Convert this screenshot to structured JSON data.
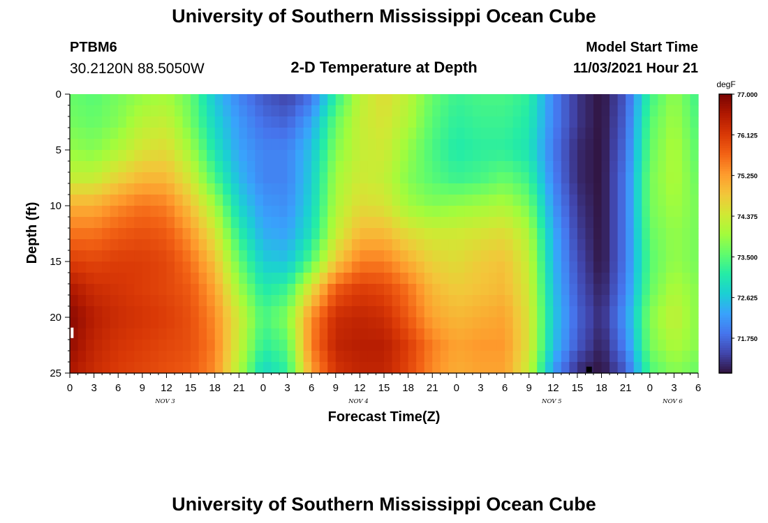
{
  "header": {
    "title": "University of Southern Mississippi Ocean Cube",
    "station_id": "PTBM6",
    "coordinates": "30.2120N  88.5050W",
    "chart_title": "2-D Temperature at Depth",
    "model_start_label": "Model Start Time",
    "model_start_value": "11/03/2021 Hour 21"
  },
  "footer": {
    "title": "University of Southern Mississippi Ocean Cube"
  },
  "colors": {
    "background": "#ffffff",
    "axis": "#000000"
  },
  "chart_data": {
    "type": "heatmap",
    "title": "2-D Temperature at Depth",
    "xlabel": "Forecast Time(Z)",
    "ylabel": "Depth (ft)",
    "x_units": "forecast hours from 00Z Nov 3",
    "xlim": [
      0,
      78
    ],
    "ylim": [
      0,
      25
    ],
    "y_inverted": true,
    "x_ticks": [
      {
        "hour": 0,
        "label": "0"
      },
      {
        "hour": 3,
        "label": "3"
      },
      {
        "hour": 6,
        "label": "6"
      },
      {
        "hour": 9,
        "label": "9"
      },
      {
        "hour": 12,
        "label": "12"
      },
      {
        "hour": 15,
        "label": "15"
      },
      {
        "hour": 18,
        "label": "18"
      },
      {
        "hour": 21,
        "label": "21"
      },
      {
        "hour": 24,
        "label": "0"
      },
      {
        "hour": 27,
        "label": "3"
      },
      {
        "hour": 30,
        "label": "6"
      },
      {
        "hour": 33,
        "label": "9"
      },
      {
        "hour": 36,
        "label": "12"
      },
      {
        "hour": 39,
        "label": "15"
      },
      {
        "hour": 42,
        "label": "18"
      },
      {
        "hour": 45,
        "label": "21"
      },
      {
        "hour": 48,
        "label": "0"
      },
      {
        "hour": 51,
        "label": "3"
      },
      {
        "hour": 54,
        "label": "6"
      },
      {
        "hour": 57,
        "label": "9"
      },
      {
        "hour": 60,
        "label": "12"
      },
      {
        "hour": 63,
        "label": "15"
      },
      {
        "hour": 66,
        "label": "18"
      },
      {
        "hour": 69,
        "label": "21"
      },
      {
        "hour": 72,
        "label": "0"
      },
      {
        "hour": 75,
        "label": "3"
      },
      {
        "hour": 78,
        "label": "6"
      }
    ],
    "y_ticks": [
      {
        "depth": 0,
        "label": "0"
      },
      {
        "depth": 5,
        "label": "5"
      },
      {
        "depth": 10,
        "label": "10"
      },
      {
        "depth": 15,
        "label": "15"
      },
      {
        "depth": 20,
        "label": "20"
      },
      {
        "depth": 25,
        "label": "25"
      }
    ],
    "day_labels": [
      {
        "hour": 12,
        "label": "NOV 3"
      },
      {
        "hour": 36,
        "label": "NOV 4"
      },
      {
        "hour": 60,
        "label": "NOV 5"
      },
      {
        "hour": 75,
        "label": "NOV 6"
      }
    ],
    "colorbar": {
      "unit": "degF",
      "min": 71.0,
      "max": 77.0,
      "ticks": [
        "77.000",
        "76.125",
        "75.250",
        "74.375",
        "73.500",
        "72.625",
        "71.750"
      ],
      "tick_values": [
        77.0,
        76.125,
        75.25,
        74.375,
        73.5,
        72.625,
        71.75
      ],
      "palette": [
        "#30123b",
        "#4145ab",
        "#4675ed",
        "#39a2fc",
        "#1bcfd4",
        "#24eca6",
        "#61fc6c",
        "#a4fc3b",
        "#d1e834",
        "#f3c63a",
        "#fe9b2d",
        "#f36315",
        "#d93806",
        "#b11901",
        "#7a0403"
      ]
    },
    "value_grid": {
      "hours": [
        0,
        3,
        6,
        9,
        12,
        15,
        18,
        21,
        24,
        27,
        30,
        33,
        36,
        39,
        42,
        45,
        48,
        51,
        54,
        57,
        60,
        63,
        66,
        69,
        72,
        75,
        78
      ],
      "depths": [
        0,
        2.5,
        5,
        7.5,
        10,
        12.5,
        15,
        17.5,
        20,
        22.5,
        25
      ],
      "values": [
        [
          73.6,
          73.5,
          73.7,
          73.9,
          74.0,
          73.6,
          72.6,
          72.0,
          71.6,
          71.4,
          71.8,
          73.2,
          74.2,
          74.6,
          74.2,
          73.6,
          73.3,
          73.4,
          73.4,
          73.2,
          72.0,
          71.3,
          71.0,
          71.6,
          73.3,
          73.9,
          73.3
        ],
        [
          73.7,
          73.6,
          73.8,
          74.2,
          74.3,
          73.7,
          72.8,
          72.2,
          71.8,
          71.7,
          72.3,
          73.6,
          74.3,
          74.5,
          74.1,
          73.5,
          73.2,
          73.3,
          73.3,
          73.1,
          72.0,
          71.3,
          71.0,
          71.7,
          73.5,
          74.0,
          73.4
        ],
        [
          73.9,
          73.8,
          74.1,
          74.5,
          74.6,
          74.0,
          73.0,
          72.3,
          72.0,
          72.0,
          72.6,
          73.8,
          74.3,
          74.4,
          73.9,
          73.4,
          73.1,
          73.2,
          73.2,
          73.0,
          71.9,
          71.2,
          71.0,
          71.8,
          73.6,
          74.1,
          73.5
        ],
        [
          74.3,
          74.3,
          74.7,
          75.0,
          75.0,
          74.4,
          73.4,
          72.5,
          72.0,
          72.0,
          72.7,
          74.0,
          74.4,
          74.3,
          73.8,
          73.5,
          73.3,
          73.4,
          73.6,
          73.3,
          72.0,
          71.2,
          71.0,
          71.9,
          73.7,
          74.1,
          73.6
        ],
        [
          75.1,
          75.1,
          75.4,
          75.6,
          75.5,
          74.9,
          74.0,
          72.8,
          72.2,
          72.1,
          72.8,
          74.1,
          74.6,
          74.5,
          74.0,
          73.8,
          73.9,
          74.0,
          74.1,
          73.7,
          72.2,
          71.3,
          71.0,
          71.9,
          73.7,
          74.0,
          73.7
        ],
        [
          75.6,
          75.6,
          75.8,
          75.9,
          75.8,
          75.3,
          74.5,
          73.2,
          72.4,
          72.3,
          73.0,
          74.3,
          75.0,
          75.0,
          74.6,
          74.4,
          74.4,
          74.5,
          74.6,
          74.1,
          72.4,
          71.4,
          71.0,
          71.9,
          73.6,
          73.9,
          73.7
        ],
        [
          76.1,
          76.0,
          76.1,
          76.1,
          76.0,
          75.6,
          74.9,
          73.6,
          72.7,
          72.6,
          73.5,
          74.8,
          75.5,
          75.5,
          75.1,
          74.7,
          74.6,
          74.8,
          74.9,
          74.3,
          72.5,
          71.5,
          71.0,
          71.9,
          73.5,
          73.9,
          73.7
        ],
        [
          76.6,
          76.3,
          76.2,
          76.1,
          76.0,
          75.8,
          75.2,
          74.0,
          73.1,
          73.3,
          74.6,
          75.8,
          76.1,
          76.0,
          75.6,
          75.0,
          74.8,
          74.9,
          75.0,
          74.4,
          72.6,
          71.6,
          71.1,
          72.0,
          73.6,
          74.1,
          73.8
        ],
        [
          76.9,
          76.5,
          76.3,
          76.2,
          76.1,
          75.9,
          75.4,
          74.4,
          73.4,
          73.8,
          75.4,
          76.3,
          76.4,
          76.3,
          75.8,
          75.2,
          75.0,
          75.1,
          75.2,
          74.5,
          72.7,
          71.7,
          71.2,
          72.2,
          73.8,
          74.3,
          73.8
        ],
        [
          76.8,
          76.4,
          76.2,
          76.1,
          76.0,
          75.9,
          75.5,
          74.3,
          73.2,
          73.5,
          75.5,
          76.4,
          76.5,
          76.5,
          76.1,
          75.5,
          75.2,
          75.3,
          75.3,
          74.5,
          72.6,
          71.6,
          71.1,
          72.0,
          73.7,
          74.1,
          73.8
        ],
        [
          76.6,
          76.3,
          76.1,
          76.0,
          75.9,
          75.8,
          75.4,
          74.1,
          72.8,
          73.2,
          75.2,
          76.2,
          76.4,
          76.4,
          76.0,
          75.4,
          75.1,
          75.2,
          75.2,
          74.3,
          72.2,
          71.2,
          71.0,
          71.6,
          73.4,
          73.8,
          73.6
        ]
      ]
    },
    "markers": [
      {
        "hour": 0.2,
        "depth": 21.3,
        "color": "#ffffff"
      },
      {
        "hour": 64.2,
        "depth": 24.8,
        "color": "#000000"
      }
    ]
  }
}
